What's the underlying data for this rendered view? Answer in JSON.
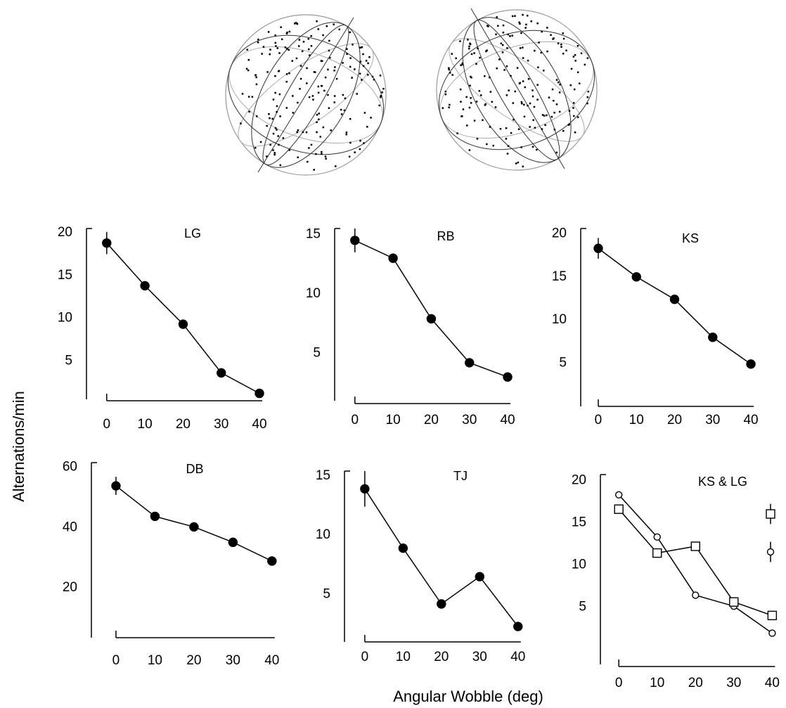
{
  "figure": {
    "ylabel": "Alternations/min",
    "xlabel": "Angular Wobble (deg)"
  },
  "chart_data": [
    {
      "type": "line",
      "title": "LG",
      "x": [
        0,
        10,
        20,
        30,
        40
      ],
      "series": [
        {
          "color": "#000000",
          "marker": "circle",
          "filled": true,
          "values": [
            18.8,
            13.8,
            9.3,
            3.6,
            1.2
          ],
          "errors": [
            1.3,
            null,
            null,
            null,
            null
          ]
        }
      ],
      "xlim": [
        -5.3,
        45.7
      ],
      "ylim": [
        0.5,
        20.5
      ],
      "xticks": [
        0,
        10,
        20,
        30,
        40
      ],
      "yticks": [
        5,
        10,
        15,
        20
      ]
    },
    {
      "type": "line",
      "title": "RB",
      "x": [
        0,
        10,
        20,
        30,
        40
      ],
      "series": [
        {
          "color": "#000000",
          "marker": "circle",
          "filled": true,
          "values": [
            14.5,
            13.0,
            7.9,
            4.2,
            3.0
          ],
          "errors": [
            1.0,
            null,
            null,
            null,
            null
          ]
        }
      ],
      "xlim": [
        -5.3,
        45.7
      ],
      "ylim": [
        1,
        15.5
      ],
      "xticks": [
        0,
        10,
        20,
        30,
        40
      ],
      "yticks": [
        5,
        10,
        15
      ]
    },
    {
      "type": "line",
      "title": "KS",
      "x": [
        0,
        10,
        20,
        30,
        40
      ],
      "series": [
        {
          "color": "#000000",
          "marker": "circle",
          "filled": true,
          "values": [
            18.3,
            15.0,
            12.4,
            8.0,
            4.9
          ],
          "errors": [
            1.2,
            null,
            null,
            null,
            null
          ]
        }
      ],
      "xlim": [
        -4.6,
        45.7
      ],
      "ylim": [
        0,
        20.6
      ],
      "xticks": [
        0,
        10,
        20,
        30,
        40
      ],
      "yticks": [
        5,
        10,
        15,
        20
      ]
    },
    {
      "type": "line",
      "title": "DB",
      "x": [
        0,
        10,
        20,
        30,
        40
      ],
      "series": [
        {
          "color": "#000000",
          "marker": "circle",
          "filled": true,
          "values": [
            53.8,
            43.7,
            40.2,
            35.1,
            28.9
          ],
          "errors": [
            3.0,
            null,
            null,
            null,
            null
          ]
        }
      ],
      "xlim": [
        -6.3,
        44
      ],
      "ylim": [
        3.5,
        61.5
      ],
      "xticks": [
        0,
        10,
        20,
        30,
        40
      ],
      "yticks": [
        20,
        40,
        60
      ]
    },
    {
      "type": "line",
      "title": "TJ",
      "x": [
        0,
        10,
        20,
        30,
        40
      ],
      "series": [
        {
          "color": "#000000",
          "marker": "circle",
          "filled": true,
          "values": [
            13.9,
            8.9,
            4.2,
            6.5,
            2.3
          ],
          "errors": [
            1.5,
            null,
            null,
            null,
            null
          ]
        }
      ],
      "xlim": [
        -5.3,
        45
      ],
      "ylim": [
        1,
        15.4
      ],
      "xticks": [
        0,
        10,
        20,
        30,
        40
      ],
      "yticks": [
        5,
        10,
        15
      ]
    },
    {
      "type": "line",
      "title": "KS & LG",
      "x": [
        0,
        10,
        20,
        30,
        40
      ],
      "series": [
        {
          "color": "#000000",
          "marker": "circle",
          "filled": false,
          "values": [
            18.3,
            13.3,
            6.4,
            5.1,
            1.9
          ],
          "typical_error": 1.2
        },
        {
          "color": "#000000",
          "marker": "square",
          "filled": false,
          "values": [
            16.6,
            11.4,
            12.2,
            5.6,
            4.0
          ],
          "typical_error": 1.2
        }
      ],
      "xlim": [
        -4.8,
        42.5
      ],
      "ylim": [
        -1.8,
        20.7
      ],
      "xticks": [
        0,
        10,
        20,
        30,
        40
      ],
      "yticks": [
        5,
        10,
        15,
        20
      ]
    }
  ]
}
